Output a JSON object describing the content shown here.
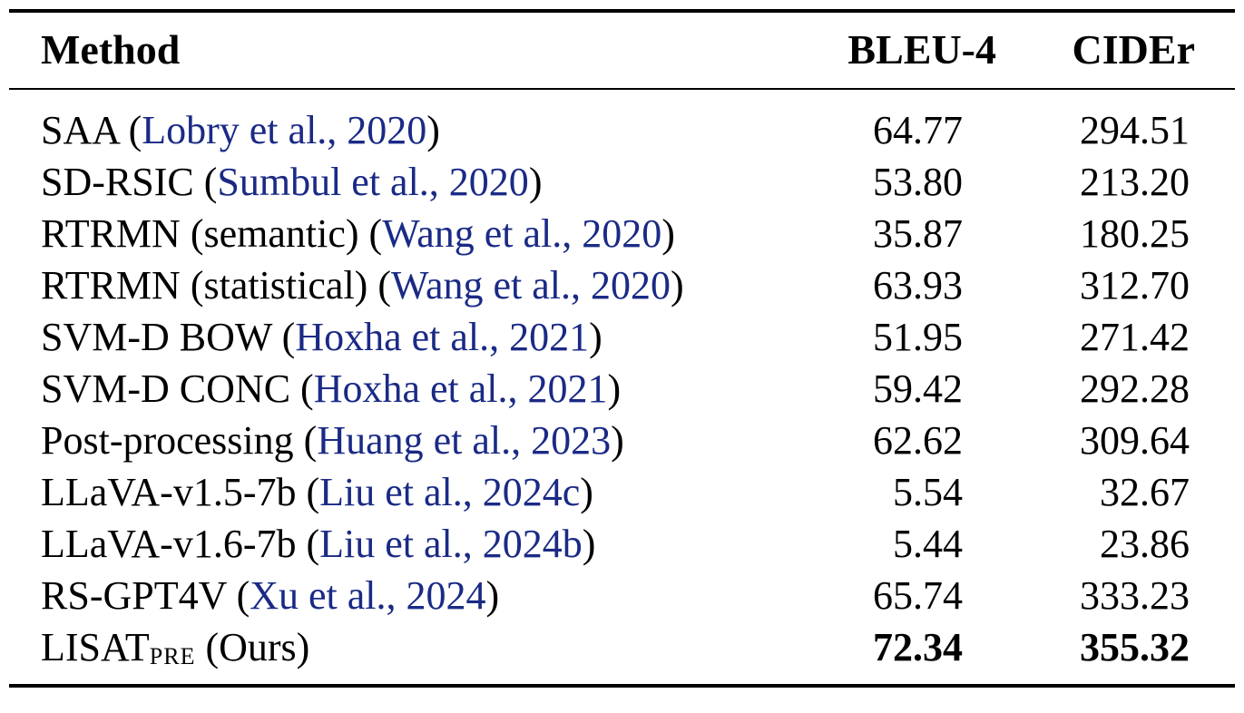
{
  "table": {
    "columns": [
      "Method",
      "BLEU-4",
      "CIDEr"
    ],
    "rows": [
      {
        "method": "SAA",
        "cite": "Lobry et al., 2020",
        "bleu4": "64.77",
        "cider": "294.51"
      },
      {
        "method": "SD-RSIC",
        "cite": "Sumbul et al., 2020",
        "bleu4": "53.80",
        "cider": "213.20"
      },
      {
        "method": "RTRMN (semantic)",
        "cite": "Wang et al., 2020",
        "bleu4": "35.87",
        "cider": "180.25"
      },
      {
        "method": "RTRMN (statistical)",
        "cite": "Wang et al., 2020",
        "bleu4": "63.93",
        "cider": "312.70"
      },
      {
        "method": "SVM-D BOW",
        "cite": "Hoxha et al., 2021",
        "bleu4": "51.95",
        "cider": "271.42"
      },
      {
        "method": "SVM-D CONC",
        "cite": "Hoxha et al., 2021",
        "bleu4": "59.42",
        "cider": "292.28"
      },
      {
        "method": "Post-processing",
        "cite": "Huang et al., 2023",
        "bleu4": "62.62",
        "cider": "309.64"
      },
      {
        "method": "LLaVA-v1.5-7b",
        "cite": "Liu et al., 2024c",
        "bleu4": "5.54",
        "cider": "32.67"
      },
      {
        "method": "LLaVA-v1.6-7b",
        "cite": "Liu et al., 2024b",
        "bleu4": "5.44",
        "cider": "23.86"
      },
      {
        "method": "RS-GPT4V",
        "cite": "Xu et al., 2024",
        "bleu4": "65.74",
        "cider": "333.23"
      }
    ],
    "ours": {
      "method_main": "LISAT",
      "method_sub": "PRE",
      "method_suffix": "(Ours)",
      "bleu4": "72.34",
      "cider": "355.32"
    }
  }
}
